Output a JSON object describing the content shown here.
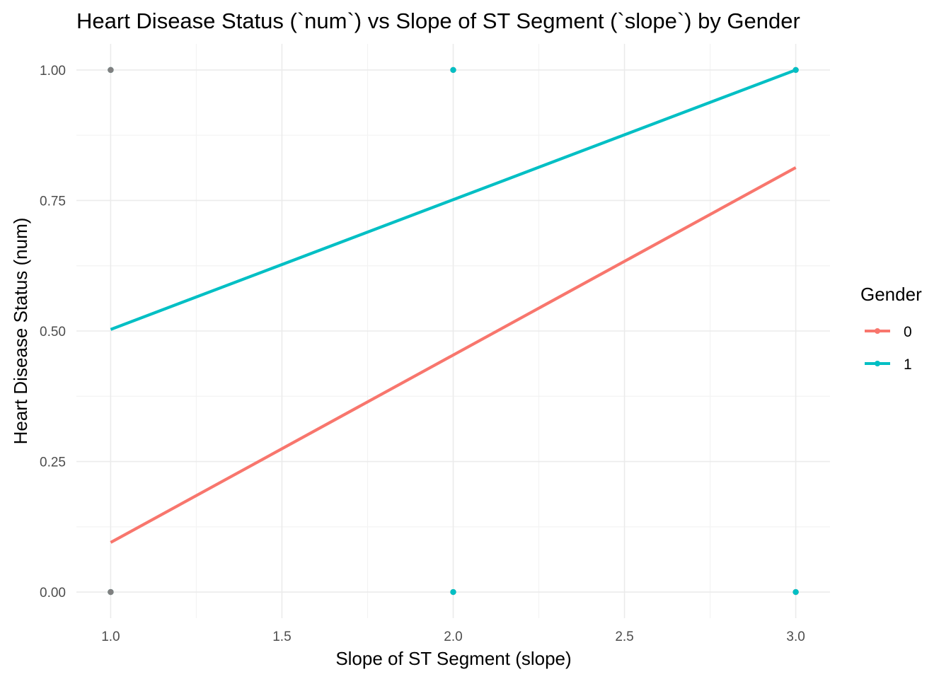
{
  "chart_data": {
    "type": "scatter",
    "title": "Heart Disease Status (`num`) vs Slope of ST Segment (`slope`) by Gender",
    "xlabel": "Slope of ST Segment (slope)",
    "ylabel": "Heart Disease Status (num)",
    "xlim": [
      0.9,
      3.1
    ],
    "ylim": [
      -0.05,
      1.05
    ],
    "x_ticks": [
      1.0,
      1.5,
      2.0,
      2.5,
      3.0
    ],
    "x_tick_labels": [
      "1.0",
      "1.5",
      "2.0",
      "2.5",
      "3.0"
    ],
    "y_ticks": [
      0.0,
      0.25,
      0.5,
      0.75,
      1.0
    ],
    "y_tick_labels": [
      "0.00",
      "0.25",
      "0.50",
      "0.75",
      "1.00"
    ],
    "grid": true,
    "legend": {
      "title": "Gender",
      "position": "right",
      "entries": [
        "0",
        "1"
      ]
    },
    "series": [
      {
        "name": "0",
        "color": "#F8766D",
        "points": [
          {
            "x": 1.0,
            "y": 0.0
          },
          {
            "x": 1.0,
            "y": 1.0
          },
          {
            "x": 2.0,
            "y": 0.0
          },
          {
            "x": 2.0,
            "y": 1.0
          },
          {
            "x": 3.0,
            "y": 0.0
          },
          {
            "x": 3.0,
            "y": 1.0
          }
        ],
        "fit_line": [
          {
            "x": 1.0,
            "y": 0.095
          },
          {
            "x": 3.0,
            "y": 0.813
          }
        ]
      },
      {
        "name": "1",
        "color": "#00BFC4",
        "points": [
          {
            "x": 1.0,
            "y": 0.0
          },
          {
            "x": 1.0,
            "y": 1.0
          },
          {
            "x": 2.0,
            "y": 0.0
          },
          {
            "x": 2.0,
            "y": 1.0
          },
          {
            "x": 3.0,
            "y": 0.0
          },
          {
            "x": 3.0,
            "y": 1.0
          }
        ],
        "fit_line": [
          {
            "x": 1.0,
            "y": 0.503
          },
          {
            "x": 3.0,
            "y": 1.0
          }
        ]
      }
    ],
    "overlap_point_color": "#808080"
  }
}
